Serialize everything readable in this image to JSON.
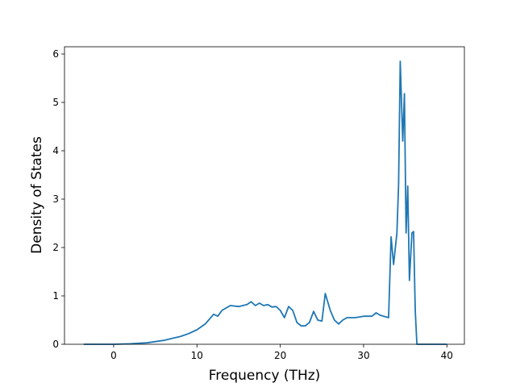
{
  "chart_data": {
    "type": "line",
    "xlabel": "Frequency (THz)",
    "ylabel": "Density of States",
    "x": [
      -3.6,
      0,
      2,
      4,
      6,
      7,
      8,
      9,
      10,
      11,
      12,
      12.5,
      13,
      14,
      15,
      16,
      16.5,
      17,
      17.5,
      18,
      18.5,
      19,
      19.5,
      20,
      20.5,
      21,
      21.5,
      22,
      22.5,
      23,
      23.5,
      24,
      24.5,
      25,
      25.4,
      26,
      26.5,
      27,
      27.5,
      28,
      29,
      30,
      31,
      31.5,
      32,
      33,
      33.3,
      33.6,
      34,
      34.2,
      34.4,
      34.7,
      34.9,
      35.1,
      35.3,
      35.5,
      35.8,
      36,
      36.2,
      36.4,
      40
    ],
    "values": [
      0,
      0,
      0.01,
      0.03,
      0.08,
      0.12,
      0.16,
      0.22,
      0.3,
      0.42,
      0.62,
      0.58,
      0.7,
      0.8,
      0.78,
      0.82,
      0.88,
      0.8,
      0.85,
      0.8,
      0.82,
      0.77,
      0.78,
      0.7,
      0.55,
      0.78,
      0.7,
      0.45,
      0.38,
      0.38,
      0.45,
      0.68,
      0.5,
      0.48,
      1.05,
      0.7,
      0.5,
      0.42,
      0.5,
      0.55,
      0.55,
      0.58,
      0.58,
      0.65,
      0.6,
      0.55,
      2.22,
      1.65,
      2.3,
      3.3,
      5.85,
      4.2,
      5.18,
      2.3,
      3.27,
      1.32,
      2.3,
      2.33,
      0.7,
      0,
      0
    ],
    "color": "#1f77b4",
    "xlim": [
      -5.9,
      42.1
    ],
    "xticks": [
      0,
      10,
      20,
      30,
      40
    ],
    "ylim": [
      0,
      6.15
    ],
    "yticks": [
      0,
      1,
      2,
      3,
      4,
      5,
      6
    ]
  }
}
